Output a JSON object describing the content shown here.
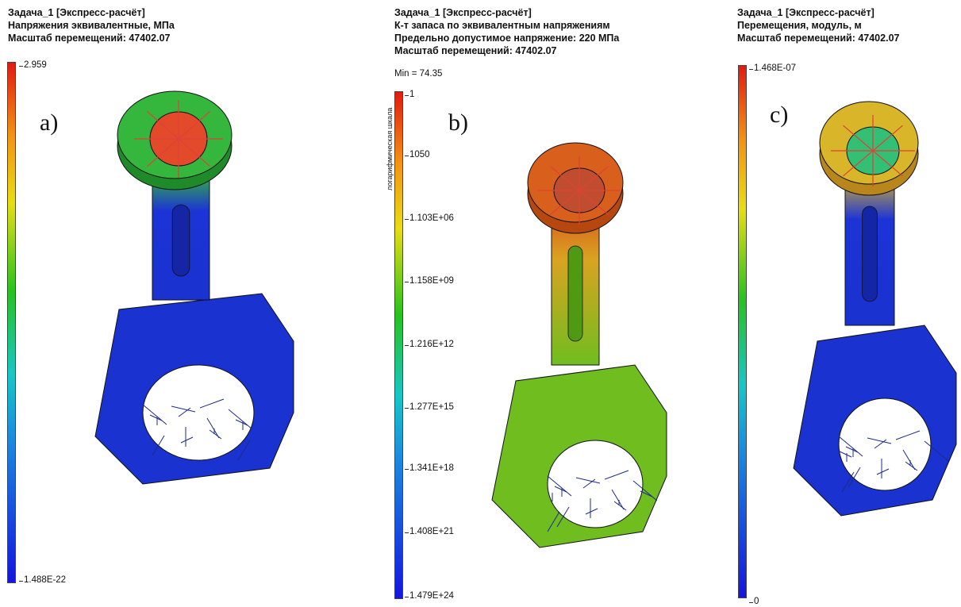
{
  "panels": [
    {
      "id": "a",
      "tag": "a)",
      "header": [
        "Задача_1 [Экспресс-расчёт]",
        "Напряжения эквивалентные, МПа",
        "Масштаб перемещений: 47402.07"
      ],
      "min_label": "",
      "scale_label": "",
      "ticks": [
        "2.959",
        "1.488E-22"
      ],
      "colors": {
        "eye": "#35b63c",
        "eye_dark": "#1f8a2a",
        "neck": "#1c33d6",
        "body": "#1a32cf",
        "body_dark": "#1426a6",
        "bore": "#e24a2a"
      }
    },
    {
      "id": "b",
      "tag": "b)",
      "header": [
        "Задача_1 [Экспресс-расчёт]",
        "К-т запаса по эквивалентным напряжениям",
        "Предельно допустимое напряжение: 220 МПа",
        "Масштаб перемещений: 47402.07"
      ],
      "min_label": "Min = 74.35",
      "scale_label": "логарифмическая шкала",
      "ticks": [
        "1",
        "1050",
        "1.103E+06",
        "1.158E+09",
        "1.216E+12",
        "1.277E+15",
        "1.341E+18",
        "1.408E+21",
        "1.479E+24"
      ],
      "colors": {
        "eye": "#d8601c",
        "eye_dark": "#b5470f",
        "neck": "#d9a321",
        "body": "#6fbd1f",
        "body_dark": "#4f9a12",
        "bore": "#c04e2e"
      }
    },
    {
      "id": "c",
      "tag": "c)",
      "header": [
        "Задача_1 [Экспресс-расчёт]",
        "Перемещения, модуль, м",
        "Масштаб перемещений: 47402.07"
      ],
      "min_label": "",
      "scale_label": "",
      "ticks": [
        "1.468E-07",
        "0"
      ],
      "colors": {
        "eye": "#d9b52a",
        "eye_dark": "#b8861a",
        "neck": "#1c33d6",
        "body": "#1a32cf",
        "body_dark": "#1426a6",
        "bore": "#33c074"
      }
    }
  ]
}
